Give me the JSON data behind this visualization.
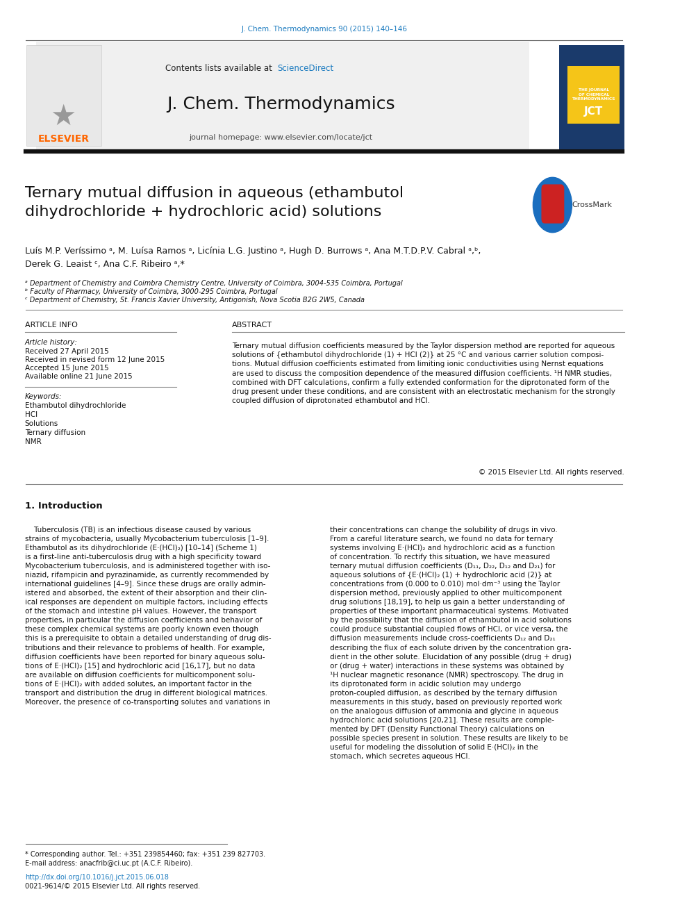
{
  "page_width": 9.92,
  "page_height": 13.23,
  "bg_color": "#ffffff",
  "top_citation": "J. Chem. Thermodynamics 90 (2015) 140–146",
  "journal_name": "J. Chem. Thermodynamics",
  "contents_text": "Contents lists available at",
  "sciencedirect_text": "ScienceDirect",
  "homepage_text": "journal homepage: www.elsevier.com/locate/jct",
  "header_bg": "#f0f0f0",
  "elsevier_color": "#ff6600",
  "sciencedirect_color": "#1a7abf",
  "link_color": "#1a7abf",
  "title": "Ternary mutual diffusion in aqueous (ethambutol\ndihydrochloride + hydrochloric acid) solutions",
  "affil_a": "ᵃ Department of Chemistry and Coimbra Chemistry Centre, University of Coimbra, 3004-535 Coimbra, Portugal",
  "affil_b": "ᵇ Faculty of Pharmacy, University of Coimbra, 3000-295 Coimbra, Portugal",
  "affil_c": "ᶜ Department of Chemistry, St. Francis Xavier University, Antigonish, Nova Scotia B2G 2W5, Canada",
  "article_info_title": "ARTICLE INFO",
  "abstract_title": "ABSTRACT",
  "article_history_label": "Article history:",
  "received": "Received 27 April 2015",
  "revised": "Received in revised form 12 June 2015",
  "accepted": "Accepted 15 June 2015",
  "available": "Available online 21 June 2015",
  "keywords_label": "Keywords:",
  "keywords": [
    "Ethambutol dihydrochloride",
    "HCl",
    "Solutions",
    "Ternary diffusion",
    "NMR"
  ],
  "abstract_text": "Ternary mutual diffusion coefficients measured by the Taylor dispersion method are reported for aqueous\nsolutions of {ethambutol dihydrochloride (1) + HCl (2)} at 25 °C and various carrier solution composi-\ntions. Mutual diffusion coefficients estimated from limiting ionic conductivities using Nernst equations\nare used to discuss the composition dependence of the measured diffusion coefficients. ¹H NMR studies,\ncombined with DFT calculations, confirm a fully extended conformation for the diprotonated form of the\ndrug present under these conditions, and are consistent with an electrostatic mechanism for the strongly\ncoupled diffusion of diprotonated ethambutol and HCl.",
  "copyright_text": "© 2015 Elsevier Ltd. All rights reserved.",
  "intro_title": "1. Introduction",
  "left_col_text": "    Tuberculosis (TB) is an infectious disease caused by various\nstrains of mycobacteria, usually Mycobacterium tuberculosis [1–9].\nEthambutol as its dihydrochloride (E·(HCl)₂) [10–14] (Scheme 1)\nis a first-line anti-tuberculosis drug with a high specificity toward\nMycobacterium tuberculosis, and is administered together with iso-\nniazid, rifampicin and pyrazinamide, as currently recommended by\ninternational guidelines [4–9]. Since these drugs are orally admin-\nistered and absorbed, the extent of their absorption and their clin-\nical responses are dependent on multiple factors, including effects\nof the stomach and intestine pH values. However, the transport\nproperties, in particular the diffusion coefficients and behavior of\nthese complex chemical systems are poorly known even though\nthis is a prerequisite to obtain a detailed understanding of drug dis-\ntributions and their relevance to problems of health. For example,\ndiffusion coefficients have been reported for binary aqueous solu-\ntions of E·(HCl)₂ [15] and hydrochloric acid [16,17], but no data\nare available on diffusion coefficients for multicomponent solu-\ntions of E·(HCl)₂ with added solutes, an important factor in the\ntransport and distribution the drug in different biological matrices.\nMoreover, the presence of co-transporting solutes and variations in",
  "right_col_text": "their concentrations can change the solubility of drugs in vivo.\nFrom a careful literature search, we found no data for ternary\nsystems involving E·(HCl)₂ and hydrochloric acid as a function\nof concentration. To rectify this situation, we have measured\nternary mutual diffusion coefficients (D₁₁, D₂₂, D₁₂ and D₂₁) for\naqueous solutions of {E·(HCl)₂ (1) + hydrochloric acid (2)} at\nconcentrations from (0.000 to 0.010) mol·dm⁻³ using the Taylor\ndispersion method, previously applied to other multicomponent\ndrug solutions [18,19], to help us gain a better understanding of\nproperties of these important pharmaceutical systems. Motivated\nby the possibility that the diffusion of ethambutol in acid solutions\ncould produce substantial coupled flows of HCl, or vice versa, the\ndiffusion measurements include cross-coefficients D₁₂ and D₂₁\ndescribing the flux of each solute driven by the concentration gra-\ndient in the other solute. Elucidation of any possible (drug + drug)\nor (drug + water) interactions in these systems was obtained by\n¹H nuclear magnetic resonance (NMR) spectroscopy. The drug in\nits diprotonated form in acidic solution may undergo\nproton-coupled diffusion, as described by the ternary diffusion\nmeasurements in this study, based on previously reported work\non the analogous diffusion of ammonia and glycine in aqueous\nhydrochloric acid solutions [20,21]. These results are comple-\nmented by DFT (Density Functional Theory) calculations on\npossible species present in solution. These results are likely to be\nuseful for modeling the dissolution of solid E·(HCl)₂ in the\nstomach, which secretes aqueous HCl.",
  "footer_doi": "http://dx.doi.org/10.1016/j.jct.2015.06.018",
  "footer_issn": "0021-9614/© 2015 Elsevier Ltd. All rights reserved.",
  "footnote_corr": "* Corresponding author. Tel.: +351 239854460; fax: +351 239 827703.",
  "footnote_email": "E-mail address: anacfrib@ci.uc.pt (A.C.F. Ribeiro)."
}
